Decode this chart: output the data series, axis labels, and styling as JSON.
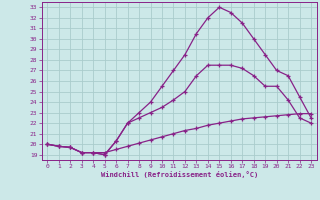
{
  "xlabel": "Windchill (Refroidissement éolien,°C)",
  "background_color": "#cce8e8",
  "grid_color": "#aacccc",
  "line_color": "#882288",
  "spine_color": "#882288",
  "xlim": [
    -0.5,
    23.5
  ],
  "ylim": [
    18.5,
    33.5
  ],
  "yticks": [
    19,
    20,
    21,
    22,
    23,
    24,
    25,
    26,
    27,
    28,
    29,
    30,
    31,
    32,
    33
  ],
  "xticks": [
    0,
    1,
    2,
    3,
    4,
    5,
    6,
    7,
    8,
    9,
    10,
    11,
    12,
    13,
    14,
    15,
    16,
    17,
    18,
    19,
    20,
    21,
    22,
    23
  ],
  "series": [
    {
      "x": [
        0,
        1,
        2,
        3,
        4,
        5,
        6,
        7,
        8,
        9,
        10,
        11,
        12,
        13,
        14,
        15,
        16,
        17,
        18,
        19,
        20,
        21,
        22,
        23
      ],
      "y": [
        20.0,
        19.8,
        19.7,
        19.2,
        19.2,
        19.2,
        19.5,
        19.8,
        20.1,
        20.4,
        20.7,
        21.0,
        21.3,
        21.5,
        21.8,
        22.0,
        22.2,
        22.4,
        22.5,
        22.6,
        22.7,
        22.8,
        22.9,
        22.9
      ]
    },
    {
      "x": [
        0,
        1,
        2,
        3,
        4,
        5,
        6,
        7,
        8,
        9,
        10,
        11,
        12,
        13,
        14,
        15,
        16,
        17,
        18,
        19,
        20,
        21,
        22,
        23
      ],
      "y": [
        20.0,
        19.8,
        19.7,
        19.2,
        19.2,
        19.0,
        20.3,
        22.0,
        22.5,
        23.0,
        23.5,
        24.2,
        25.0,
        26.5,
        27.5,
        27.5,
        27.5,
        27.2,
        26.5,
        25.5,
        25.5,
        24.2,
        22.5,
        22.0
      ]
    },
    {
      "x": [
        0,
        1,
        2,
        3,
        4,
        5,
        6,
        7,
        8,
        9,
        10,
        11,
        12,
        13,
        14,
        15,
        16,
        17,
        18,
        19,
        20,
        21,
        22,
        23
      ],
      "y": [
        20.0,
        19.8,
        19.7,
        19.2,
        19.2,
        19.0,
        20.3,
        22.0,
        23.0,
        24.0,
        25.5,
        27.0,
        28.5,
        30.5,
        32.0,
        33.0,
        32.5,
        31.5,
        30.0,
        28.5,
        27.0,
        26.5,
        24.5,
        22.5
      ]
    }
  ]
}
